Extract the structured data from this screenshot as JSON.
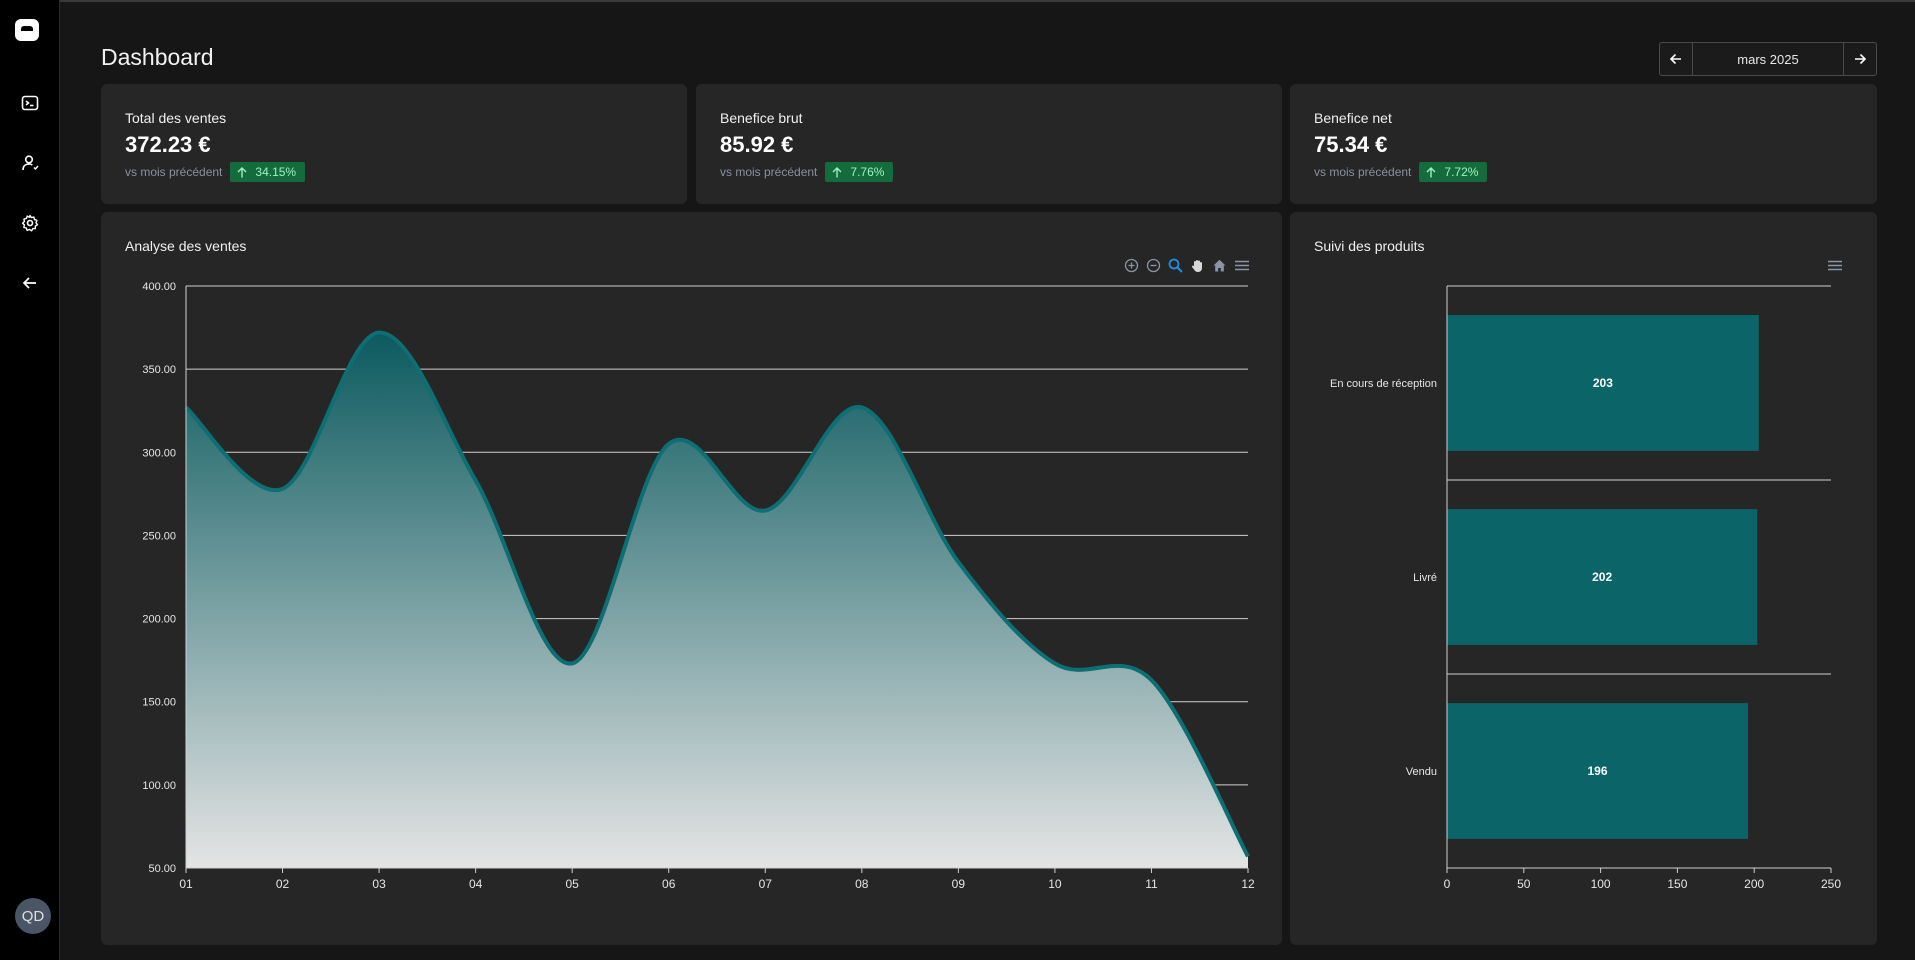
{
  "sidebar": {
    "items": [
      {
        "name": "terminal-icon"
      },
      {
        "name": "user-icon"
      },
      {
        "name": "gear-icon"
      },
      {
        "name": "arrow-left-icon"
      }
    ],
    "avatar_initials": "QD"
  },
  "header": {
    "title": "Dashboard",
    "month_label": "mars 2025"
  },
  "kpis": [
    {
      "title": "Total des ventes",
      "value": "372.23 €",
      "compare_label": "vs mois précédent",
      "change": "34.15%",
      "trend": "up"
    },
    {
      "title": "Benefice brut",
      "value": "85.92 €",
      "compare_label": "vs mois précédent",
      "change": "7.76%",
      "trend": "up"
    },
    {
      "title": "Benefice net",
      "value": "75.34 €",
      "compare_label": "vs mois précédent",
      "change": "7.72%",
      "trend": "up"
    }
  ],
  "sales_panel": {
    "title": "Analyse des ventes",
    "toolbar": [
      "zoom-in-icon",
      "zoom-out-icon",
      "selection-zoom-icon",
      "pan-hand-icon",
      "home-reset-icon",
      "menu-icon"
    ]
  },
  "products_panel": {
    "title": "Suivi des produits",
    "toolbar": [
      "menu-icon"
    ]
  },
  "colors": {
    "accent": "#0b6468",
    "line": "#0d6e73",
    "badge_bg": "#146c3c",
    "badge_text": "#9ff0c0",
    "card": "#262626"
  },
  "chart_data": [
    {
      "type": "area",
      "title": "Analyse des ventes",
      "categories": [
        "01",
        "02",
        "03",
        "04",
        "05",
        "06",
        "07",
        "08",
        "09",
        "10",
        "11",
        "12"
      ],
      "values": [
        327,
        278,
        372,
        283,
        173,
        305,
        265,
        327,
        234,
        173,
        163,
        57
      ],
      "ylim": [
        50,
        400
      ],
      "yticks": [
        "50.00",
        "100.00",
        "150.00",
        "200.00",
        "250.00",
        "300.00",
        "350.00",
        "400.00"
      ],
      "grid": true
    },
    {
      "type": "bar",
      "orientation": "horizontal",
      "title": "Suivi des produits",
      "categories": [
        "En cours de réception",
        "Livré",
        "Vendu"
      ],
      "values": [
        203,
        202,
        196
      ],
      "data_labels": [
        "203",
        "202",
        "196"
      ],
      "xlim": [
        0,
        250
      ],
      "xticks": [
        "0",
        "50",
        "100",
        "150",
        "200",
        "250"
      ]
    }
  ]
}
